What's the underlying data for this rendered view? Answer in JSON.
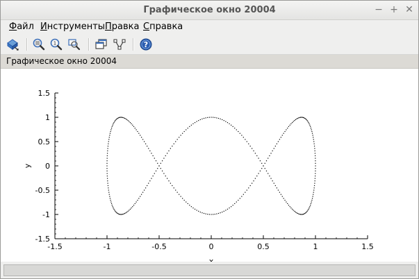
{
  "window": {
    "title": "Графическое окно 20004",
    "minimize_glyph": "−",
    "maximize_glyph": "+",
    "close_glyph": "✕"
  },
  "menu": {
    "items": [
      {
        "first": "Ф",
        "rest": "айл"
      },
      {
        "first": "И",
        "rest": "нструменты"
      },
      {
        "first": "П",
        "rest": "равка"
      },
      {
        "first": "С",
        "rest": "правка"
      }
    ]
  },
  "toolbar": {
    "icons": [
      "rotate-icon",
      "zoom-grid-icon",
      "zoom-reset-icon",
      "zoom-area-icon",
      "windows-icon",
      "datatip-icon",
      "help-icon"
    ]
  },
  "infobar": {
    "text": "Графическое окно 20004"
  },
  "colors": {
    "accent": "#2a5db0",
    "curve": "#000000"
  },
  "chart_data": {
    "type": "line",
    "style": "dotted",
    "title": "",
    "xlabel": "x",
    "ylabel": "y",
    "xlim": [
      -1.5,
      1.5
    ],
    "ylim": [
      -1.5,
      1.5
    ],
    "xticks": [
      "-1.5",
      "-1",
      "-0.5",
      "0",
      "0.5",
      "1",
      "1.5"
    ],
    "yticks": [
      "1.5",
      "1",
      "0.5",
      "0",
      "-0.5",
      "-1",
      "-1.5"
    ],
    "xtick_values": [
      -1.5,
      -1,
      -0.5,
      0,
      0.5,
      1,
      1.5
    ],
    "ytick_values": [
      1.5,
      1,
      0.5,
      0,
      -0.5,
      -1,
      -1.5
    ],
    "grid": false,
    "series": [
      {
        "x_equation": "sin(t)",
        "y_equation": "cos(3t)",
        "t_range": [
          0,
          6.2832
        ]
      }
    ]
  }
}
